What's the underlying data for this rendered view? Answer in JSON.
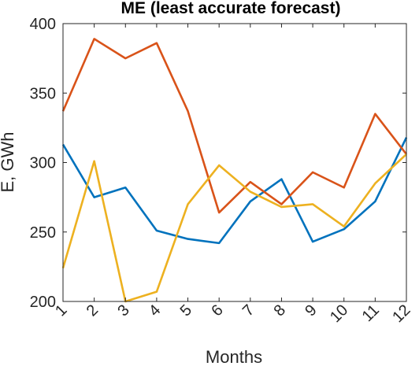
{
  "chart_data": {
    "type": "line",
    "title": "ME (least accurate forecast)",
    "xlabel": "Months",
    "ylabel": "E, GWh",
    "x": [
      1,
      2,
      3,
      4,
      5,
      6,
      7,
      8,
      9,
      10,
      11,
      12
    ],
    "xticklabels": [
      "1",
      "2",
      "3",
      "4",
      "5",
      "6",
      "7",
      "8",
      "9",
      "10",
      "11",
      "12"
    ],
    "xlim": [
      1,
      12
    ],
    "ylim": [
      200,
      400
    ],
    "yticks": [
      200,
      250,
      300,
      350,
      400
    ],
    "yticklabels": [
      "200",
      "250",
      "300",
      "350",
      "400"
    ],
    "grid": false,
    "series": [
      {
        "color": "#0072BD",
        "values": [
          313,
          275,
          282,
          251,
          245,
          242,
          272,
          288,
          243,
          252,
          272,
          318
        ]
      },
      {
        "color": "#D95319",
        "values": [
          337,
          389,
          375,
          386,
          337,
          264,
          286,
          270,
          293,
          282,
          335,
          306
        ]
      },
      {
        "color": "#EDB120",
        "values": [
          224,
          301,
          200,
          207,
          270,
          298,
          279,
          268,
          270,
          254,
          285,
          306
        ]
      }
    ]
  }
}
